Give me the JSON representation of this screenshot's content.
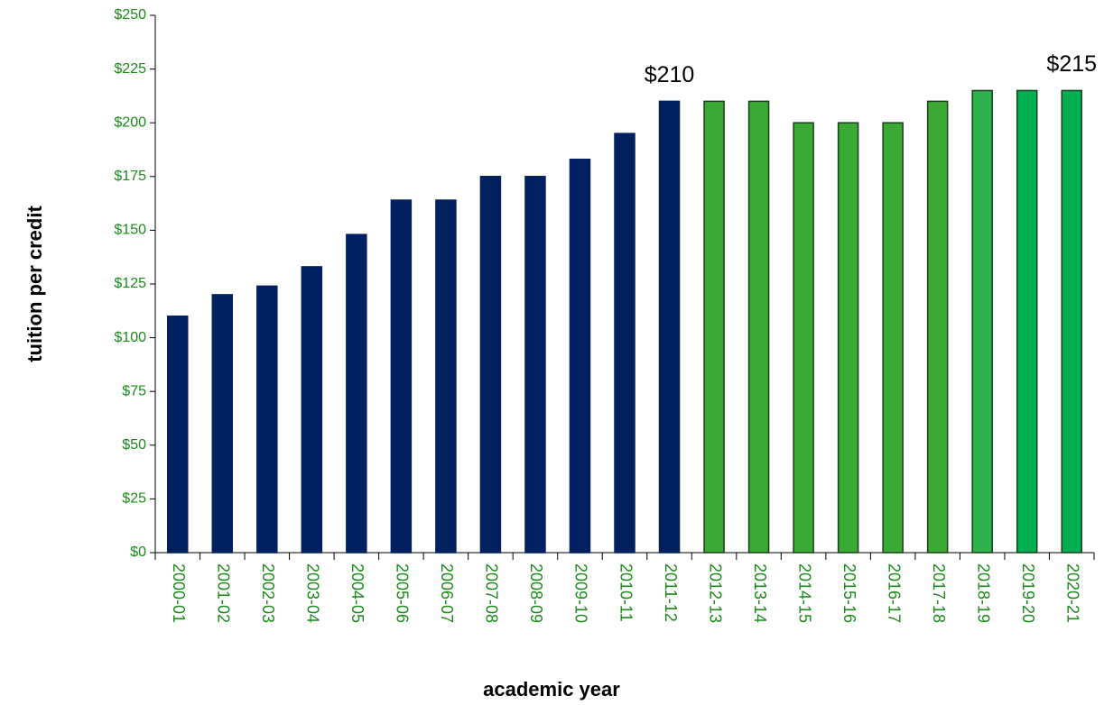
{
  "chart_data": {
    "type": "bar",
    "categories": [
      "2000-01",
      "2001-02",
      "2002-03",
      "2003-04",
      "2004-05",
      "2005-06",
      "2006-07",
      "2007-08",
      "2008-09",
      "2009-10",
      "2010-11",
      "2011-12",
      "2012-13",
      "2013-14",
      "2014-15",
      "2015-16",
      "2016-17",
      "2017-18",
      "2018-19",
      "2019-20",
      "2020-21"
    ],
    "values": [
      110,
      120,
      124,
      133,
      148,
      164,
      164,
      175,
      175,
      183,
      195,
      210,
      210,
      210,
      200,
      200,
      200,
      210,
      215,
      215,
      215
    ],
    "value_labels": [
      null,
      null,
      null,
      null,
      null,
      null,
      null,
      null,
      null,
      null,
      null,
      "$210",
      null,
      null,
      null,
      null,
      null,
      null,
      null,
      null,
      "$215"
    ],
    "colors": [
      "#002060",
      "#002060",
      "#002060",
      "#002060",
      "#002060",
      "#002060",
      "#002060",
      "#002060",
      "#002060",
      "#002060",
      "#002060",
      "#002060",
      "#3aaa35",
      "#3aaa35",
      "#3aaa35",
      "#3aaa35",
      "#3aaa35",
      "#3aaa35",
      "#2db34a",
      "#00b050",
      "#00b050"
    ],
    "ylim": [
      0,
      250
    ],
    "yticks": [
      {
        "value": 0,
        "label": "$0"
      },
      {
        "value": 25,
        "label": "$25"
      },
      {
        "value": 50,
        "label": "$50"
      },
      {
        "value": 75,
        "label": "$75"
      },
      {
        "value": 100,
        "label": "$100"
      },
      {
        "value": 125,
        "label": "$125"
      },
      {
        "value": 150,
        "label": "$150"
      },
      {
        "value": 175,
        "label": "$175"
      },
      {
        "value": 200,
        "label": "$200"
      },
      {
        "value": 225,
        "label": "$225"
      },
      {
        "value": 250,
        "label": "$250"
      }
    ],
    "y_label": "tuition per credit",
    "x_label": "academic year",
    "grid": false
  }
}
